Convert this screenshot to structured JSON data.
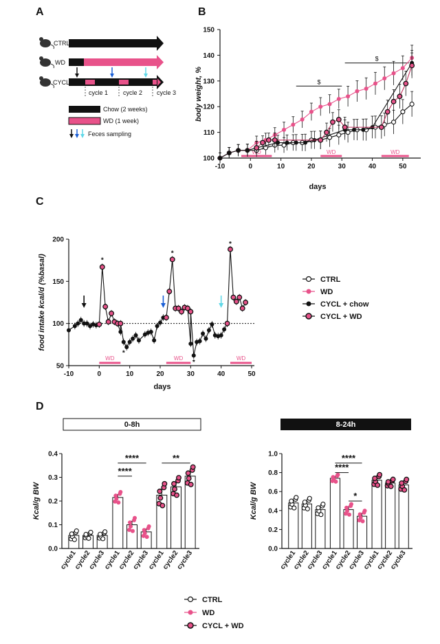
{
  "panels": {
    "A": "A",
    "B": "B",
    "C": "C",
    "D": "D"
  },
  "colors": {
    "pink": "#e8528a",
    "cyclwd": "#c0335f",
    "black": "#111111",
    "blue": "#1a5fd6",
    "cyan": "#5fd8e8",
    "grey": "#777777"
  },
  "schematic": {
    "rows": [
      "CTRL",
      "WD",
      "CYCL"
    ],
    "cycles": [
      "cycle 1",
      "cycle 2",
      "cycle 3"
    ],
    "legend": [
      "Chow (2 weeks)",
      "WD (1 week)",
      "Feces sampling"
    ]
  },
  "common": {
    "days": "days",
    "wd": "WD",
    "sig_dollar": "$",
    "star": "*"
  },
  "chart_data": [
    {
      "id": "B",
      "type": "line",
      "title": "",
      "xlabel": "days",
      "ylabel": "body weight, %",
      "xlim": [
        -10,
        55
      ],
      "ylim": [
        100,
        150
      ],
      "xticks": [
        -10,
        0,
        10,
        20,
        30,
        40,
        50
      ],
      "yticks": [
        100,
        110,
        120,
        130,
        140,
        150
      ],
      "wd_periods": [
        [
          -3,
          7
        ],
        [
          23,
          30
        ],
        [
          43,
          52
        ]
      ],
      "series": [
        {
          "name": "CTRL",
          "x": [
            -10,
            -7,
            -4,
            -1,
            2,
            5,
            8,
            11,
            14,
            17,
            20,
            23,
            26,
            29,
            32,
            35,
            38,
            41,
            44,
            47,
            50,
            53
          ],
          "y": [
            100,
            102,
            103,
            103,
            103,
            104,
            105,
            105,
            106,
            106,
            107,
            107,
            108,
            109,
            110,
            111,
            111,
            112,
            113,
            114,
            118,
            121
          ]
        },
        {
          "name": "WD",
          "x": [
            -10,
            -7,
            -4,
            -1,
            2,
            5,
            8,
            11,
            14,
            17,
            20,
            23,
            26,
            29,
            32,
            35,
            38,
            41,
            44,
            47,
            50,
            53
          ],
          "y": [
            100,
            102,
            103,
            103,
            106,
            107,
            109,
            111,
            113,
            115,
            118,
            120,
            121,
            123,
            124,
            126,
            127,
            129,
            131,
            133,
            135,
            139
          ]
        },
        {
          "name": "CYCL + chow",
          "x": [
            -10,
            -7,
            -4,
            -1,
            2,
            9,
            12,
            15,
            18,
            21,
            31,
            34,
            37,
            40,
            53
          ],
          "y": [
            100,
            102,
            103,
            103,
            104,
            106,
            106,
            106,
            106,
            107,
            111,
            111,
            111,
            112,
            137
          ]
        },
        {
          "name": "CYCL + WD",
          "x": [
            2,
            4,
            6,
            8,
            23,
            25,
            27,
            29,
            31,
            43,
            45,
            47,
            49,
            51,
            53
          ],
          "y": [
            104,
            106,
            107,
            107,
            107,
            110,
            114,
            115,
            112,
            112,
            118,
            122,
            124,
            129,
            136
          ]
        }
      ],
      "significance": [
        {
          "label": "$",
          "x": [
            15,
            30
          ],
          "y": 128
        },
        {
          "label": "$",
          "x": [
            31,
            52
          ],
          "y": 137
        }
      ]
    },
    {
      "id": "C",
      "type": "line",
      "xlabel": "days",
      "ylabel": "food intake kcal/d (%basal)",
      "xlim": [
        -10,
        50
      ],
      "ylim": [
        50,
        200
      ],
      "xticks": [
        -10,
        0,
        10,
        20,
        30,
        40,
        50
      ],
      "yticks": [
        50,
        100,
        150,
        200
      ],
      "baseline": 100,
      "wd_periods": [
        [
          0,
          7
        ],
        [
          22,
          30
        ],
        [
          43,
          50
        ]
      ],
      "series": [
        {
          "name": "CYCL + chow",
          "x": [
            -10,
            -8,
            -7,
            -6,
            -5,
            -4,
            -3,
            -2,
            -1,
            0,
            7,
            8,
            9,
            10,
            11,
            12,
            13,
            15,
            16,
            17,
            18,
            19,
            20,
            21,
            30,
            31,
            32,
            33,
            34,
            35,
            36,
            37,
            38,
            39,
            40,
            41,
            42
          ],
          "y": [
            92,
            97,
            100,
            104,
            100,
            100,
            97,
            99,
            98,
            99,
            90,
            78,
            72,
            78,
            82,
            86,
            80,
            87,
            89,
            90,
            80,
            97,
            101,
            107,
            76,
            62,
            78,
            79,
            88,
            82,
            92,
            99,
            86,
            85,
            86,
            93,
            100
          ]
        },
        {
          "name": "CYCL + WD",
          "x": [
            0,
            1,
            2,
            3,
            4,
            5,
            6,
            7,
            22,
            23,
            24,
            25,
            26,
            27,
            28,
            29,
            30,
            42,
            43,
            44,
            45,
            46,
            47,
            48
          ],
          "y": [
            99,
            167,
            120,
            102,
            112,
            102,
            100,
            100,
            107,
            138,
            176,
            118,
            118,
            114,
            119,
            118,
            114,
            100,
            188,
            131,
            126,
            131,
            118,
            125
          ]
        }
      ],
      "stars": [
        {
          "x": 1,
          "y": 176
        },
        {
          "x": 8,
          "y": 66
        },
        {
          "x": 24,
          "y": 184
        },
        {
          "x": 31,
          "y": 55
        },
        {
          "x": 43,
          "y": 195
        }
      ],
      "arrows": [
        {
          "x": -5,
          "color": "black"
        },
        {
          "x": 21,
          "color": "blue"
        },
        {
          "x": 40,
          "color": "cyan"
        }
      ]
    },
    {
      "id": "D1",
      "type": "bar",
      "title": "0-8h",
      "ylabel": "Kcal/g BW",
      "ylim": [
        0,
        0.4
      ],
      "yticks": [
        "0.0",
        "0.1",
        "0.2",
        "0.3",
        "0.4"
      ],
      "categories": [
        "cycle1",
        "cycle2",
        "cycle3",
        "cycle1",
        "cycle2",
        "cycle3",
        "cycle1",
        "cycle2",
        "cycle3"
      ],
      "groups": [
        "CTRL",
        "CTRL",
        "CTRL",
        "WD",
        "WD",
        "WD",
        "CYCL + WD",
        "CYCL + WD",
        "CYCL + WD"
      ],
      "values": [
        0.055,
        0.055,
        0.055,
        0.215,
        0.1,
        0.07,
        0.225,
        0.26,
        0.305
      ],
      "errors": [
        0.01,
        0.007,
        0.008,
        0.012,
        0.015,
        0.012,
        0.025,
        0.02,
        0.02
      ],
      "significance": [
        {
          "label": "****",
          "from": 3,
          "to": 4,
          "y": 0.305
        },
        {
          "label": "****",
          "from": 3,
          "to": 5,
          "y": 0.36
        },
        {
          "label": "**",
          "from": 6,
          "to": 8,
          "y": 0.36
        }
      ]
    },
    {
      "id": "D2",
      "type": "bar",
      "title": "8-24h",
      "ylabel": "Kcal/g BW",
      "ylim": [
        0,
        1.0
      ],
      "yticks": [
        "0.0",
        "0.2",
        "0.4",
        "0.6",
        "0.8",
        "1.0"
      ],
      "categories": [
        "cycle1",
        "cycle2",
        "cycle3",
        "cycle1",
        "cycle2",
        "cycle3",
        "cycle1",
        "cycle2",
        "cycle3"
      ],
      "groups": [
        "CTRL",
        "CTRL",
        "CTRL",
        "WD",
        "WD",
        "WD",
        "CYCL + WD",
        "CYCL + WD",
        "CYCL + WD"
      ],
      "values": [
        0.48,
        0.47,
        0.41,
        0.74,
        0.41,
        0.34,
        0.72,
        0.69,
        0.67
      ],
      "errors": [
        0.03,
        0.03,
        0.03,
        0.02,
        0.03,
        0.03,
        0.03,
        0.02,
        0.03
      ],
      "significance": [
        {
          "label": "****",
          "from": 3,
          "to": 4,
          "y": 0.8
        },
        {
          "label": "****",
          "from": 3,
          "to": 5,
          "y": 0.9
        },
        {
          "label": "*",
          "from": 4,
          "to": 5,
          "y": 0.5
        }
      ]
    }
  ],
  "legends": {
    "C": [
      "CTRL",
      "WD",
      "CYCL + chow",
      "CYCL + WD"
    ],
    "D": [
      "CTRL",
      "WD",
      "CYCL + WD"
    ]
  }
}
